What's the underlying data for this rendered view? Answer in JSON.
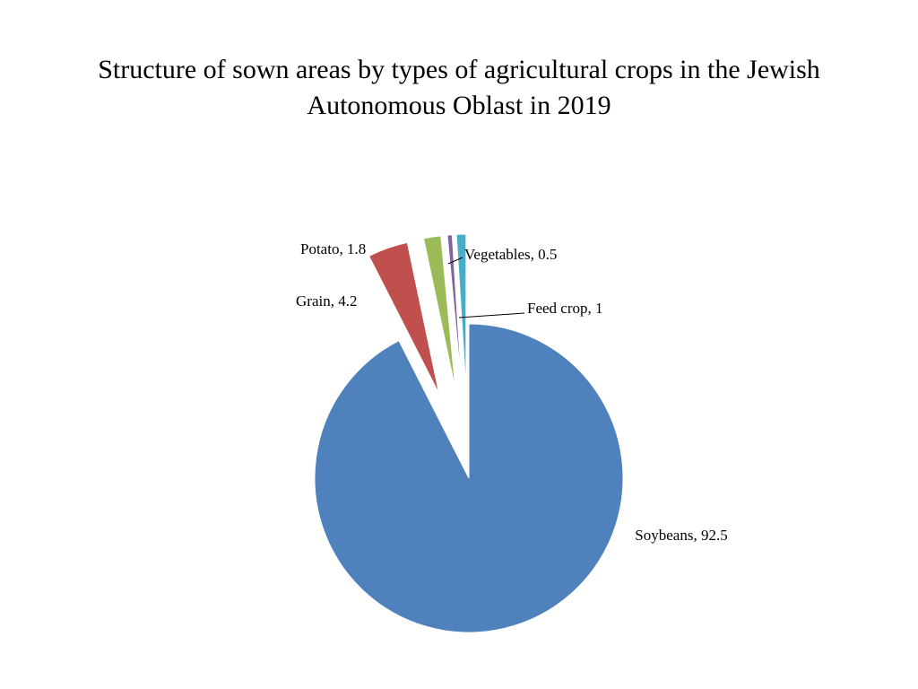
{
  "chart_data": {
    "type": "pie",
    "title": "Structure of sown areas by types of agricultural crops in the Jewish Autonomous Oblast in 2019",
    "values": [
      92.5,
      4.2,
      1.8,
      0.5,
      1
    ],
    "value_labels": [
      "Soybeans, 92.5",
      "Grain, 4.2",
      "Potato, 1.8",
      "Vegetables, 0.5",
      "Feed crop, 1"
    ],
    "colors": [
      "#4f81bd",
      "#c0504d",
      "#9bbb59",
      "#8064a2",
      "#4bacc6"
    ],
    "start_angle": 0,
    "direction": "clockwise"
  }
}
